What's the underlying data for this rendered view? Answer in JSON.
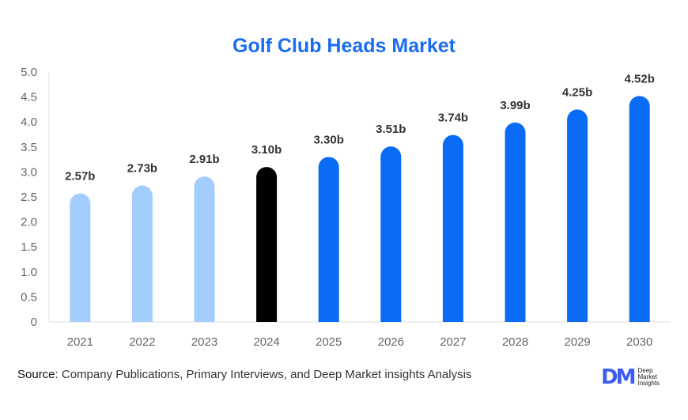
{
  "chart_data": {
    "type": "bar",
    "title": "Golf Club Heads Market",
    "categories": [
      "2021",
      "2022",
      "2023",
      "2024",
      "2025",
      "2026",
      "2027",
      "2028",
      "2029",
      "2030"
    ],
    "values": [
      2.57,
      2.73,
      2.91,
      3.1,
      3.3,
      3.51,
      3.74,
      3.99,
      4.25,
      4.52
    ],
    "data_labels": [
      "2.57b",
      "2.73b",
      "2.91b",
      "3.10b",
      "3.30b",
      "3.51b",
      "3.74b",
      "3.99b",
      "4.25b",
      "4.52b"
    ],
    "bar_colors": [
      "#a3cdfc",
      "#a3cdfc",
      "#a3cdfc",
      "#000000",
      "#0a6cf5",
      "#0a6cf5",
      "#0a6cf5",
      "#0a6cf5",
      "#0a6cf5",
      "#0a6cf5"
    ],
    "yticks": [
      "0",
      "0.5",
      "1.0",
      "1.5",
      "2.0",
      "2.5",
      "3.0",
      "3.5",
      "4.0",
      "4.5",
      "5.0"
    ],
    "ylim": [
      0,
      5
    ],
    "xlabel": "",
    "ylabel": "",
    "grid": false,
    "title_color": "#1a6cf0"
  },
  "footer": {
    "source_label": "Source",
    "source_text": ": Company Publications, Primary Interviews, and Deep Market insights Analysis",
    "logo_mark": "DM",
    "logo_text": [
      "Deep",
      "Market",
      "Insights"
    ]
  }
}
